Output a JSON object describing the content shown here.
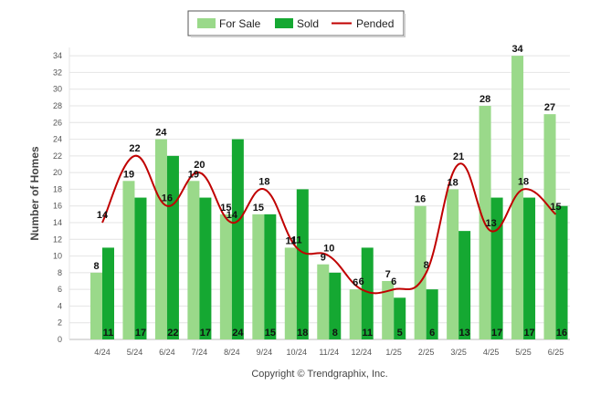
{
  "chart_data": {
    "type": "bar",
    "ylabel": "Number of Homes",
    "xlabel": "",
    "ylim": [
      0,
      35
    ],
    "yticks": [
      0,
      2,
      4,
      6,
      8,
      10,
      12,
      14,
      16,
      18,
      20,
      22,
      24,
      26,
      28,
      30,
      32,
      34
    ],
    "grid": true,
    "legend_position": "top-center",
    "categories": [
      "4/24",
      "5/24",
      "6/24",
      "7/24",
      "8/24",
      "9/24",
      "10/24",
      "11/24",
      "12/24",
      "1/25",
      "2/25",
      "3/25",
      "4/25",
      "5/25",
      "6/25"
    ],
    "series": [
      {
        "name": "For Sale",
        "type": "bar",
        "color": "#9ad98a",
        "values": [
          8,
          19,
          24,
          19,
          15,
          15,
          11,
          9,
          6,
          7,
          16,
          18,
          28,
          34,
          27
        ]
      },
      {
        "name": "Sold",
        "type": "bar",
        "color": "#15a832",
        "values": [
          11,
          17,
          22,
          17,
          24,
          15,
          18,
          8,
          11,
          5,
          6,
          13,
          17,
          17,
          16
        ]
      },
      {
        "name": "Pended",
        "type": "line",
        "color": "#c00000",
        "values": [
          14,
          22,
          16,
          20,
          14,
          18,
          11,
          10,
          6,
          6,
          8,
          21,
          13,
          18,
          15
        ]
      }
    ]
  },
  "footer": {
    "copyright": "Copyright © Trendgraphix, Inc."
  }
}
